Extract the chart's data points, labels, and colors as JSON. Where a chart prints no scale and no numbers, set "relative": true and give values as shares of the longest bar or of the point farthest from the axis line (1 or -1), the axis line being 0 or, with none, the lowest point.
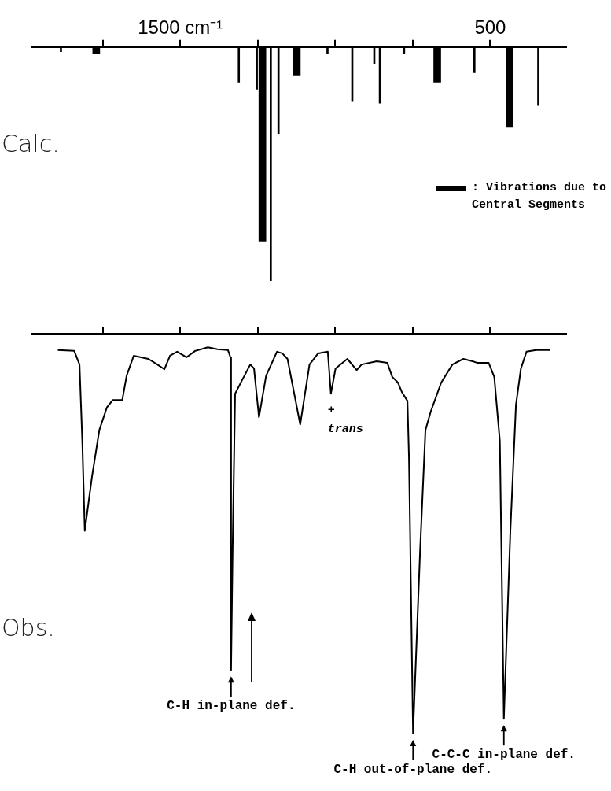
{
  "chart_data": [
    {
      "type": "bar",
      "ylabel": "Calc.",
      "relative": true,
      "legend": "right",
      "xlim": [
        1980,
        255
      ],
      "xticks": [
        {
          "value": 1750,
          "label": null
        },
        {
          "value": 1500,
          "label": "1500 cm⁻¹"
        },
        {
          "value": 1250,
          "label": null
        },
        {
          "value": 1000,
          "label": null
        },
        {
          "value": 750,
          "label": null
        },
        {
          "value": 500,
          "label": "500"
        }
      ],
      "series": [
        {
          "color": "#000000",
          "x": [
            1885,
            1311,
            1253,
            1208,
            1183,
            1025,
            945,
            874,
            856,
            778,
            551,
            345
          ],
          "values": [
            -0.02,
            -0.15,
            -0.18,
            -1,
            -0.37,
            -0.03,
            -0.23,
            -0.07,
            -0.24,
            -0.03,
            -0.11,
            -0.25
          ]
        },
        {
          "name": ": Vibrations due to Central Segments",
          "color": "#000000",
          "x": [
            1771,
            1235,
            1124,
            671,
            438
          ],
          "values": [
            -0.03,
            -0.83,
            -0.12,
            -0.15,
            -0.34
          ]
        }
      ]
    },
    {
      "type": "line",
      "ylabel": "Obs.",
      "relative": true,
      "marker": "none",
      "tick_labels": false,
      "xlim": [
        1980,
        255
      ],
      "xticks": [
        {
          "value": 1750,
          "label": null
        },
        {
          "value": 1500,
          "label": null
        },
        {
          "value": 1250,
          "label": null
        },
        {
          "value": 1000,
          "label": null
        },
        {
          "value": 750,
          "label": null
        },
        {
          "value": 500,
          "label": null
        }
      ],
      "x": [
        1895,
        1842,
        1825,
        1816,
        1808,
        1785,
        1761,
        1737,
        1718,
        1687,
        1673,
        1650,
        1603,
        1574,
        1551,
        1533,
        1510,
        1480,
        1452,
        1411,
        1380,
        1346,
        1338,
        1336,
        1331,
        1323,
        1299,
        1274,
        1262,
        1246,
        1223,
        1188,
        1171,
        1154,
        1113,
        1083,
        1055,
        1024,
        1014,
        999,
        961,
        931,
        915,
        866,
        832,
        816,
        798,
        785,
        767,
        762,
        749,
        726,
        709,
        692,
        658,
        622,
        587,
        557,
        541,
        505,
        487,
        469,
        456,
        435,
        417,
        401,
        383,
        352,
        307
      ],
      "series": [
        {
          "color": "#000000",
          "values": [
            -0.041,
            -0.043,
            -0.077,
            -0.268,
            -0.493,
            -0.359,
            -0.241,
            -0.185,
            -0.166,
            -0.166,
            -0.105,
            -0.055,
            -0.063,
            -0.077,
            -0.089,
            -0.055,
            -0.045,
            -0.059,
            -0.043,
            -0.034,
            -0.039,
            -0.041,
            -0.059,
            -0.841,
            -0.538,
            -0.15,
            -0.114,
            -0.077,
            -0.087,
            -0.209,
            -0.105,
            -0.045,
            -0.049,
            -0.063,
            -0.227,
            -0.077,
            -0.049,
            -0.045,
            -0.15,
            -0.087,
            -0.063,
            -0.091,
            -0.077,
            -0.069,
            -0.073,
            -0.108,
            -0.122,
            -0.146,
            -0.168,
            -0.314,
            -1,
            -0.538,
            -0.241,
            -0.195,
            -0.122,
            -0.077,
            -0.063,
            -0.069,
            -0.073,
            -0.073,
            -0.108,
            -0.268,
            -0.963,
            -0.493,
            -0.178,
            -0.087,
            -0.045,
            -0.041,
            -0.041
          ]
        }
      ],
      "annotations": [
        {
          "text": "+\ntrans",
          "x": 1014,
          "y": -0.15
        },
        {
          "text": "C-H in-plane def.",
          "x": 1336,
          "y": -0.841
        },
        {
          "text": "C-H out-of-plane def.",
          "x": 749,
          "y": -1
        },
        {
          "text": "C-C-C in-plane def.",
          "x": 456,
          "y": -0.963
        }
      ]
    }
  ]
}
